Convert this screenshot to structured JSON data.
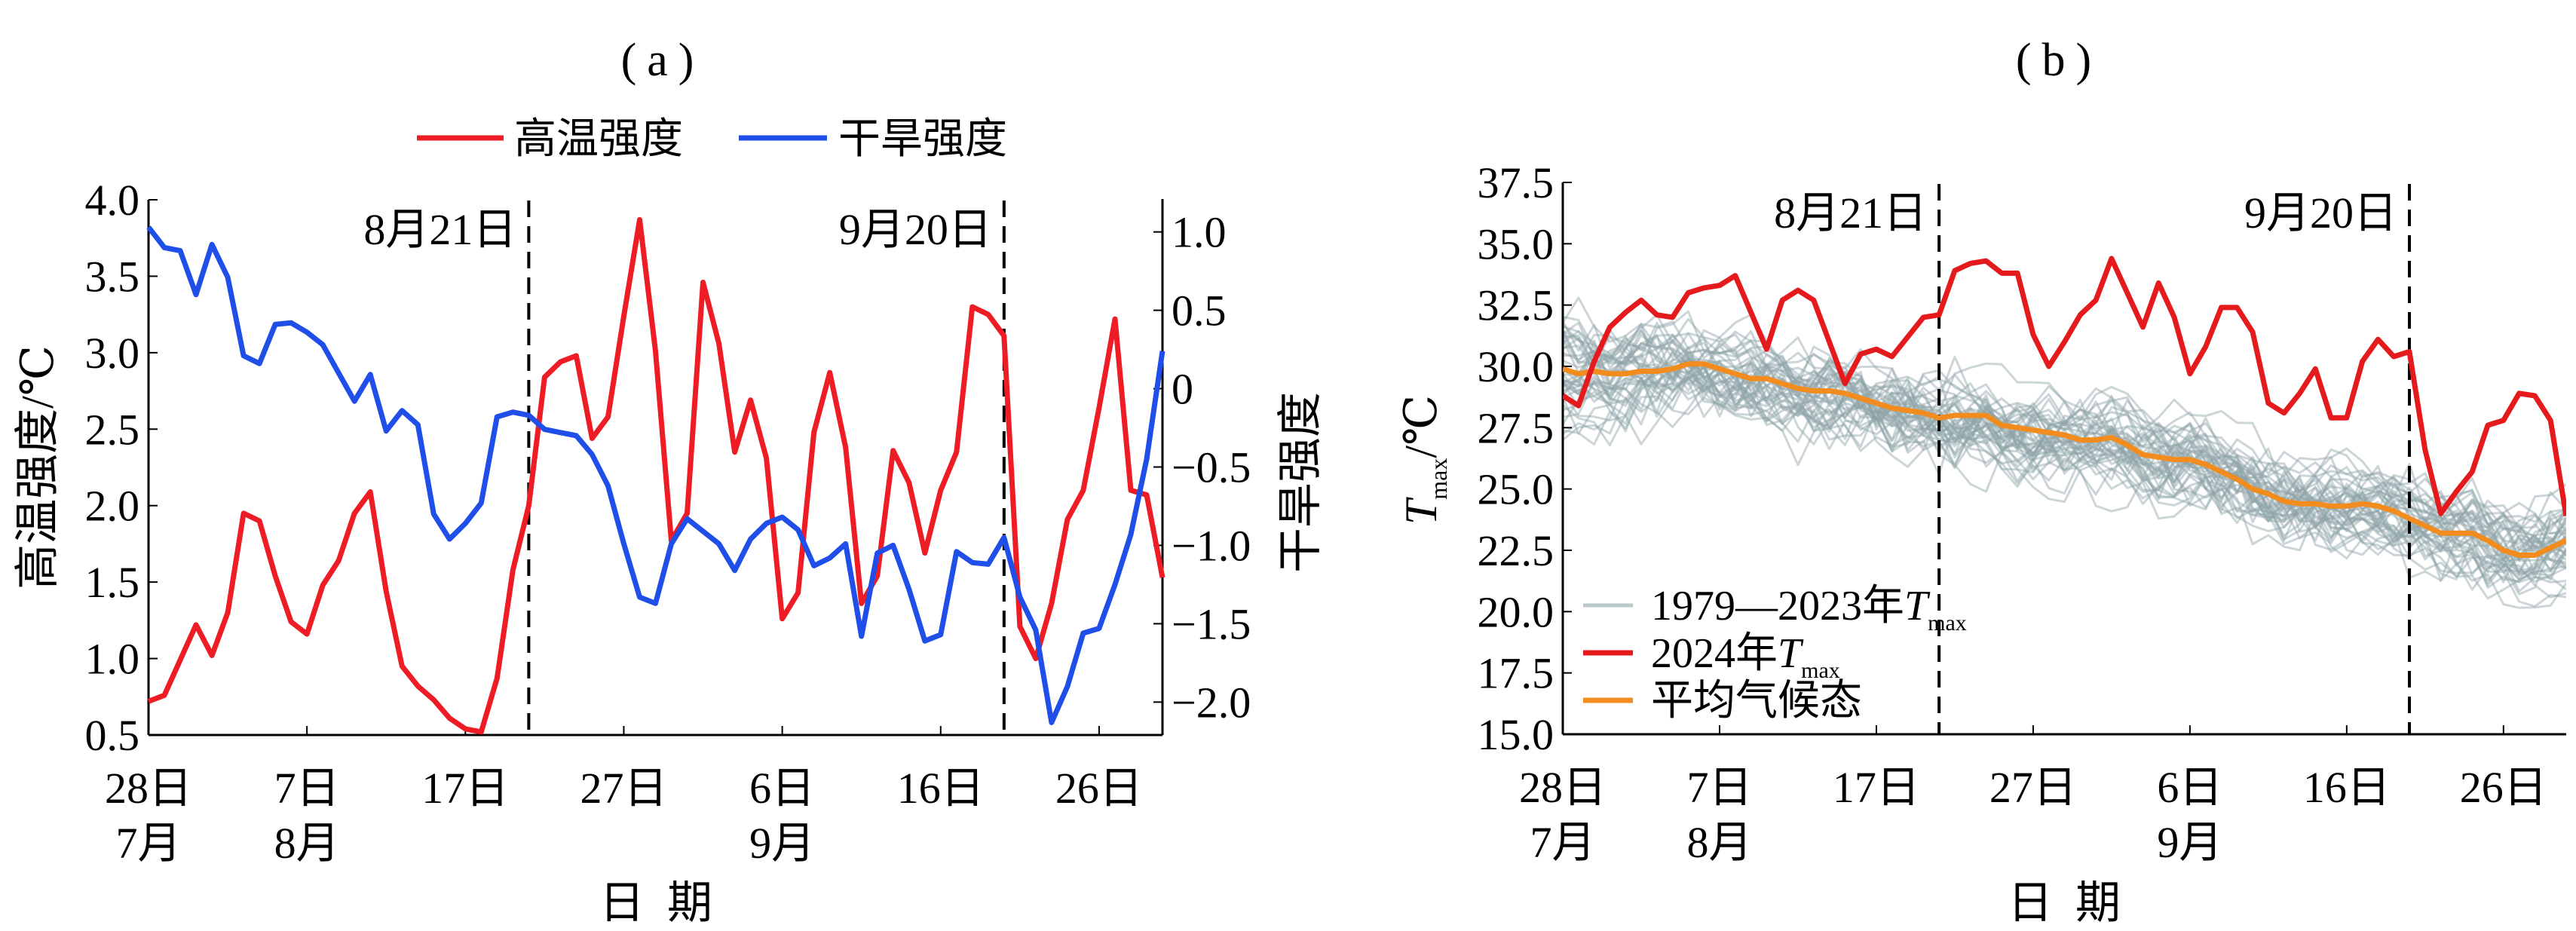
{
  "chart_data": [
    {
      "type": "line",
      "panel_label": "（a）",
      "title_open": "(",
      "title_letter": "a",
      "title_close": ")",
      "xlabel": "日  期",
      "ylabel_left": "高温强度/℃",
      "ylabel_right": "干旱强度",
      "x_start_date": "2024-07-28",
      "x_days": 64,
      "xticks": [
        {
          "day": 0,
          "label": "28日",
          "month": "7月"
        },
        {
          "day": 10,
          "label": "7日",
          "month": "8月"
        },
        {
          "day": 20,
          "label": "17日",
          "month": ""
        },
        {
          "day": 30,
          "label": "27日",
          "month": ""
        },
        {
          "day": 40,
          "label": "6日",
          "month": "9月"
        },
        {
          "day": 50,
          "label": "16日",
          "month": ""
        },
        {
          "day": 60,
          "label": "26日",
          "month": ""
        }
      ],
      "ylim_left": [
        0.5,
        4.0
      ],
      "yticks_left": [
        "0.5",
        "1.0",
        "1.5",
        "2.0",
        "2.5",
        "3.0",
        "3.5",
        "4.0"
      ],
      "ylim_right": [
        -2.21,
        1.21
      ],
      "yticks_right": [
        {
          "value": 1.0,
          "label": "1.0"
        },
        {
          "value": 0.5,
          "label": "0.5"
        },
        {
          "value": 0,
          "label": "0"
        },
        {
          "value": -0.5,
          "label": "−0.5"
        },
        {
          "value": -1.0,
          "label": "−1.0"
        },
        {
          "value": -1.5,
          "label": "−1.5"
        },
        {
          "value": -2.0,
          "label": "−2.0"
        }
      ],
      "vlines": [
        {
          "day": 24,
          "label": "8月21日"
        },
        {
          "day": 54,
          "label": "9月20日"
        }
      ],
      "legend": [
        {
          "label": "高温强度",
          "color": "#ee1c25"
        },
        {
          "label": "干旱强度",
          "color": "#1f4ee8"
        }
      ],
      "legend_position": "top-center",
      "series": [
        {
          "name": "高温强度",
          "axis": "left",
          "color": "#ee1c25",
          "values": [
            0.72,
            0.76,
            0.99,
            1.22,
            1.02,
            1.3,
            1.95,
            1.9,
            1.54,
            1.24,
            1.16,
            1.48,
            1.64,
            1.95,
            2.09,
            1.44,
            0.95,
            0.82,
            0.73,
            0.61,
            0.54,
            0.52,
            0.87,
            1.58,
            2.0,
            2.84,
            2.94,
            2.98,
            2.44,
            2.58,
            3.24,
            3.87,
            3.01,
            1.77,
            1.95,
            3.46,
            3.06,
            2.35,
            2.69,
            2.31,
            1.26,
            1.43,
            2.48,
            2.87,
            2.38,
            1.36,
            1.54,
            2.36,
            2.15,
            1.69,
            2.1,
            2.35,
            3.3,
            3.25,
            3.11,
            1.21,
            1.0,
            1.36,
            1.91,
            2.1,
            2.64,
            3.22,
            2.1,
            2.07,
            1.53
          ]
        },
        {
          "name": "干旱强度",
          "axis": "right",
          "color": "#1f4ee8",
          "values": [
            1.03,
            0.9,
            0.88,
            0.6,
            0.92,
            0.71,
            0.21,
            0.16,
            0.41,
            0.42,
            0.36,
            0.28,
            0.1,
            -0.08,
            0.09,
            -0.27,
            -0.14,
            -0.23,
            -0.8,
            -0.96,
            -0.86,
            -0.73,
            -0.18,
            -0.15,
            -0.17,
            -0.26,
            -0.28,
            -0.3,
            -0.42,
            -0.62,
            -0.99,
            -1.33,
            -1.37,
            -0.99,
            -0.83,
            -0.91,
            -0.99,
            -1.16,
            -0.96,
            -0.86,
            -0.82,
            -0.9,
            -1.13,
            -1.08,
            -0.99,
            -1.58,
            -1.05,
            -1.0,
            -1.28,
            -1.61,
            -1.57,
            -1.04,
            -1.11,
            -1.12,
            -0.95,
            -1.33,
            -1.54,
            -2.13,
            -1.9,
            -1.56,
            -1.53,
            -1.25,
            -0.93,
            -0.45,
            0.24
          ]
        }
      ]
    },
    {
      "type": "line",
      "panel_label": "（b）",
      "title_open": "(",
      "title_letter": "b",
      "title_close": ")",
      "xlabel": "日  期",
      "ylabel_main": "T",
      "ylabel_sub": "max",
      "ylabel_unit": "/℃",
      "x_start_date": "2024-07-28",
      "x_days": 64,
      "xticks": [
        {
          "day": 0,
          "label": "28日",
          "month": "7月"
        },
        {
          "day": 10,
          "label": "7日",
          "month": "8月"
        },
        {
          "day": 20,
          "label": "17日",
          "month": ""
        },
        {
          "day": 30,
          "label": "27日",
          "month": ""
        },
        {
          "day": 40,
          "label": "6日",
          "month": "9月"
        },
        {
          "day": 50,
          "label": "16日",
          "month": ""
        },
        {
          "day": 60,
          "label": "26日",
          "month": ""
        }
      ],
      "ylim": [
        15.0,
        37.5
      ],
      "yticks": [
        "15.0",
        "17.5",
        "20.0",
        "22.5",
        "25.0",
        "27.5",
        "30.0",
        "32.5",
        "35.0",
        "37.5"
      ],
      "vlines": [
        {
          "day": 24,
          "label": "8月21日"
        },
        {
          "day": 54,
          "label": "9月20日"
        }
      ],
      "legend": [
        {
          "label": "1979—2023年",
          "italic": "T",
          "sub": "max",
          "color": "#b9c7c9"
        },
        {
          "label": "2024年",
          "italic": "T",
          "sub": "max",
          "color": "#e41a1c"
        },
        {
          "label": "平均气候态",
          "italic": "",
          "sub": "",
          "color": "#f28c1e"
        }
      ],
      "legend_position": "lower-left",
      "historical": {
        "years": "1979—2023",
        "count": 45,
        "spread": 2.6,
        "seed": 1979,
        "color": "#8fa5a8"
      },
      "series": [
        {
          "name": "2024年Tmax",
          "color": "#e41a1c",
          "values": [
            28.8,
            28.4,
            30.2,
            31.6,
            32.2,
            32.7,
            32.1,
            32.0,
            33.0,
            33.2,
            33.3,
            33.7,
            32.2,
            30.7,
            32.7,
            33.1,
            32.7,
            31.0,
            29.3,
            30.5,
            30.7,
            30.4,
            31.2,
            32.0,
            32.1,
            33.9,
            34.2,
            34.3,
            33.8,
            33.8,
            31.3,
            30.0,
            31.0,
            32.1,
            32.7,
            34.4,
            33.0,
            31.6,
            33.4,
            32.0,
            29.7,
            30.8,
            32.4,
            32.4,
            31.4,
            28.5,
            28.1,
            28.9,
            29.9,
            27.9,
            27.9,
            30.2,
            31.1,
            30.4,
            30.6,
            26.6,
            24.0,
            24.9,
            25.7,
            27.6,
            27.8,
            28.9,
            28.8,
            27.8,
            23.9
          ]
        },
        {
          "name": "平均气候态",
          "color": "#f28c1e",
          "values": [
            29.9,
            29.7,
            29.8,
            29.7,
            29.7,
            29.8,
            29.8,
            29.9,
            30.1,
            30.1,
            29.9,
            29.7,
            29.5,
            29.5,
            29.3,
            29.1,
            29.0,
            29.0,
            28.9,
            28.7,
            28.5,
            28.3,
            28.2,
            28.1,
            27.9,
            28.0,
            28.0,
            28.0,
            27.6,
            27.5,
            27.4,
            27.3,
            27.2,
            27.0,
            27.0,
            27.1,
            26.8,
            26.4,
            26.3,
            26.2,
            26.2,
            26.0,
            25.7,
            25.4,
            25.0,
            24.8,
            24.5,
            24.4,
            24.4,
            24.3,
            24.3,
            24.4,
            24.3,
            24.1,
            23.8,
            23.5,
            23.2,
            23.2,
            23.2,
            22.9,
            22.5,
            22.3,
            22.3,
            22.6,
            22.9
          ]
        }
      ]
    }
  ]
}
